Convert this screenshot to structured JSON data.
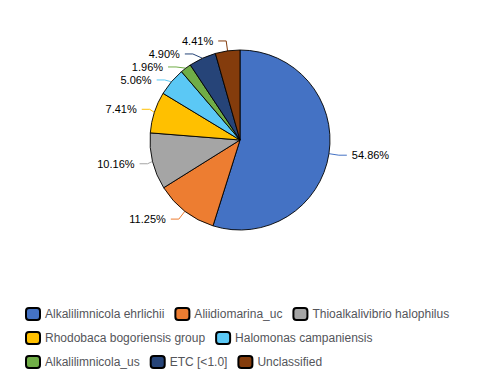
{
  "chart_data": {
    "type": "pie",
    "categories": [
      "Alkalilimnicola ehrlichii",
      "Aliidiomarina_uc",
      "Thioalkalivibrio halophilus",
      "Rhodobaca bogoriensis group",
      "Halomonas campaniensis",
      "Alkalilimnicola_us",
      "ETC [<1.0]",
      "Unclassified"
    ],
    "values": [
      54.86,
      11.25,
      10.16,
      7.41,
      5.06,
      1.96,
      4.9,
      4.41
    ],
    "value_labels": [
      "54.86%",
      "11.25%",
      "10.16%",
      "7.41%",
      "5.06%",
      "1.96%",
      "4.90%",
      "4.41%"
    ],
    "colors": [
      "#4472C4",
      "#ED7D31",
      "#A5A5A5",
      "#FFC000",
      "#5BC8F5",
      "#70AD47",
      "#264478",
      "#843C0C"
    ],
    "data_labels": true,
    "legend": "bottom"
  }
}
